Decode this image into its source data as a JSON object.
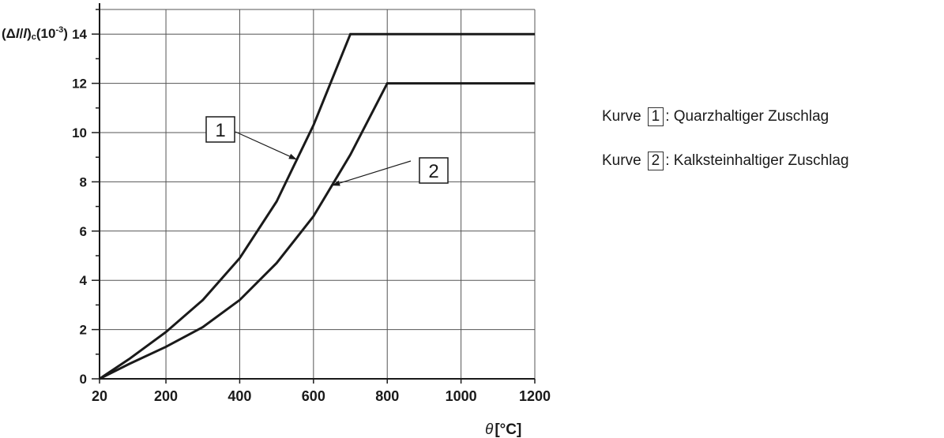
{
  "chart_data": {
    "type": "line",
    "ylabel": "(Δl/l)c(10⁻³)",
    "ylabel_parts": {
      "prefix": "(Δ",
      "l1": "l",
      "slash": "/",
      "l2": "l",
      "close": ")",
      "sub": "c",
      "mid": "(10",
      "sup": "-3",
      "end": ")"
    },
    "xlabel_symbol": "θ",
    "xlabel_unit": "[°C]",
    "xlim": [
      20,
      1200
    ],
    "ylim": [
      0,
      15
    ],
    "x_ticks": [
      20,
      200,
      400,
      600,
      800,
      1000,
      1200
    ],
    "y_ticks": [
      0,
      2,
      4,
      6,
      8,
      10,
      12,
      14
    ],
    "grid": true,
    "series": [
      {
        "name": "1",
        "x": [
          20,
          100,
          200,
          300,
          400,
          500,
          600,
          700,
          800,
          900,
          1000,
          1100,
          1200
        ],
        "y": [
          0,
          0.8,
          1.9,
          3.2,
          4.9,
          7.2,
          10.3,
          14,
          14,
          14,
          14,
          14,
          14
        ]
      },
      {
        "name": "2",
        "x": [
          20,
          100,
          200,
          300,
          400,
          500,
          600,
          700,
          800,
          900,
          1000,
          1100,
          1200
        ],
        "y": [
          0,
          0.6,
          1.3,
          2.1,
          3.2,
          4.7,
          6.6,
          9.1,
          12,
          12,
          12,
          12,
          12
        ]
      }
    ],
    "annotations": [
      {
        "label": "1",
        "series": "1"
      },
      {
        "label": "2",
        "series": "2"
      }
    ]
  },
  "legend": [
    {
      "prefix": "Kurve",
      "box": "1",
      "text": ": Quarzhaltiger Zuschlag"
    },
    {
      "prefix": "Kurve",
      "box": "2",
      "text": ": Kalksteinhaltiger Zuschlag"
    }
  ],
  "colors": {
    "line": "#1a1a1a",
    "grid": "#555555"
  }
}
